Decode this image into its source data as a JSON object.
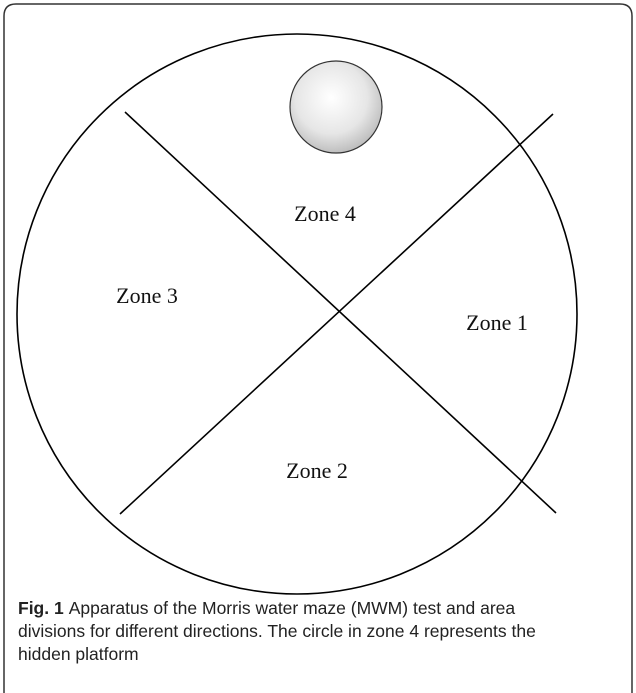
{
  "figure": {
    "zones": [
      "Zone 4",
      "Zone 3",
      "Zone 1",
      "Zone 2"
    ]
  },
  "caption": {
    "label": "Fig. 1",
    "lines": [
      "Apparatus of the Morris water maze (MWM) test and area",
      "divisions for different directions. The circle in zone 4 represents the",
      "hidden platform"
    ]
  }
}
